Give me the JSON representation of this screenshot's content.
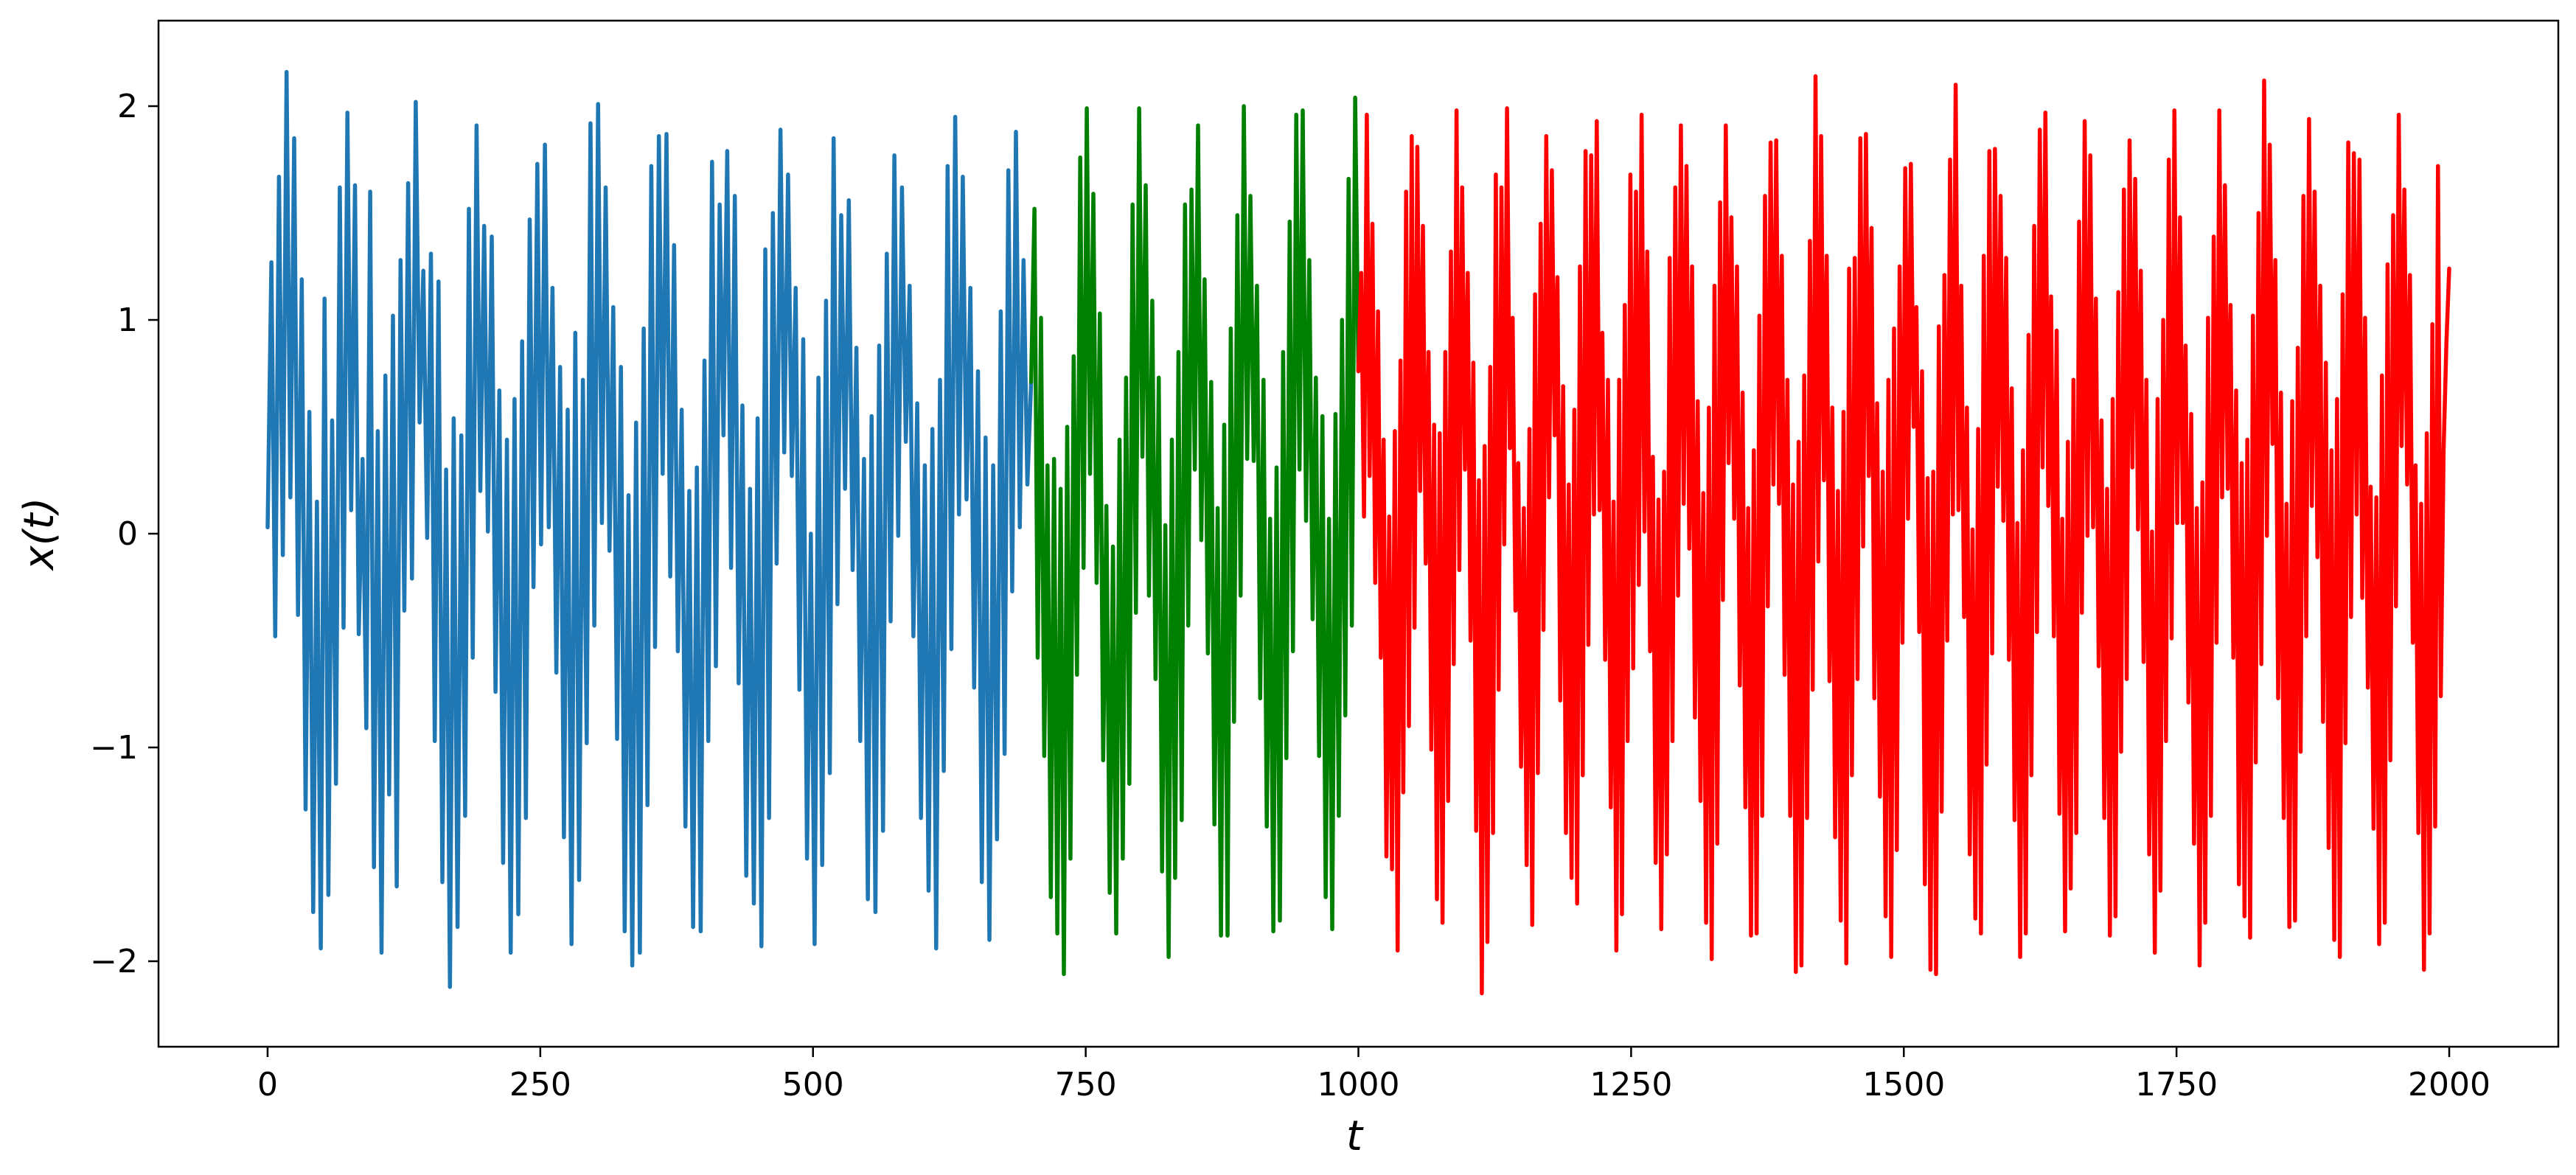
{
  "chart_data": {
    "type": "line",
    "xlabel": "t",
    "ylabel": "x(t)",
    "xlim": [
      -100,
      2100
    ],
    "ylim": [
      -2.4,
      2.4
    ],
    "grid": false,
    "x_ticks": [
      0,
      250,
      500,
      750,
      1000,
      1250,
      1500,
      1750,
      2000
    ],
    "x_tick_labels": [
      "0",
      "250",
      "500",
      "750",
      "1000",
      "1250",
      "1500",
      "1750",
      "2000"
    ],
    "y_ticks": [
      2,
      1,
      0,
      -1,
      -2
    ],
    "y_tick_labels": [
      "2",
      "1",
      "0",
      "−1",
      "−2"
    ],
    "series": [
      {
        "color": "#1f77b4",
        "x_range": [
          0,
          700
        ],
        "values": [
          0.03,
          1.27,
          -0.48,
          1.67,
          -0.1,
          2.16,
          0.17,
          1.85,
          -0.38,
          1.19,
          -1.29,
          0.57,
          -1.77,
          0.15,
          -1.94,
          1.1,
          -1.69,
          0.53,
          -1.17,
          1.62,
          -0.44,
          1.97,
          0.11,
          1.63,
          -0.47,
          0.35,
          -0.91,
          1.6,
          -1.56,
          0.48,
          -1.96,
          0.74,
          -1.22,
          1.02,
          -1.65,
          1.28,
          -0.36,
          1.64,
          -0.21,
          2.02,
          0.52,
          1.23,
          -0.02,
          1.31,
          -0.97,
          1.18,
          -1.63,
          0.3,
          -2.12,
          0.54,
          -1.84,
          0.46,
          -1.32,
          1.52,
          -0.58,
          1.91,
          0.2,
          1.44,
          0.01,
          1.39,
          -0.74,
          0.67,
          -1.54,
          0.44,
          -1.96,
          0.63,
          -1.78,
          0.9,
          -1.33,
          1.47,
          -0.25,
          1.73,
          -0.05,
          1.82,
          0.03,
          1.15,
          -0.65,
          0.78,
          -1.42,
          0.58,
          -1.92,
          0.94,
          -1.62,
          0.72,
          -0.98,
          1.92,
          -0.43,
          2.01,
          0.05,
          1.62,
          -0.08,
          1.06,
          -0.96,
          0.78,
          -1.86,
          0.18,
          -2.02,
          0.52,
          -1.96,
          0.96,
          -1.27,
          1.72,
          -0.53,
          1.86,
          0.28,
          1.87,
          -0.2,
          1.35,
          -0.55,
          0.58,
          -1.37,
          0.2,
          -1.84,
          0.31,
          -1.86,
          0.81,
          -0.97,
          1.74,
          -0.62,
          1.54,
          0.46,
          1.79,
          -0.16,
          1.58,
          -0.7,
          0.6,
          -1.6,
          0.21,
          -1.73,
          0.54,
          -1.93,
          1.33,
          -1.33,
          1.5,
          -0.14,
          1.89,
          0.38,
          1.68,
          0.27,
          1.15,
          -0.73,
          0.91,
          -1.52,
          0.0,
          -1.92,
          0.73,
          -1.55,
          1.09,
          -1.12,
          1.85,
          -0.33,
          1.49,
          0.21,
          1.56,
          -0.17,
          0.87,
          -0.97,
          0.35,
          -1.71,
          0.55,
          -1.77,
          0.88,
          -1.39,
          1.31,
          -0.41,
          1.77,
          -0.01,
          1.62,
          0.43,
          1.16,
          -0.48,
          0.61,
          -1.33,
          0.32,
          -1.67,
          0.49,
          -1.94,
          0.72,
          -1.11,
          1.72,
          -0.54,
          1.95,
          0.09,
          1.67,
          0.16,
          1.15,
          -0.72,
          0.76,
          -1.63,
          0.45,
          -1.9,
          0.32,
          -1.43,
          1.04,
          -1.03,
          1.7,
          -0.27,
          1.88,
          0.03,
          1.28,
          0.23,
          0.71
        ]
      },
      {
        "color": "#008000",
        "x_range": [
          700,
          1000
        ],
        "values": [
          0.71,
          1.52,
          -0.58,
          1.01,
          -1.04,
          0.32,
          -1.7,
          0.35,
          -1.87,
          0.21,
          -2.06,
          0.5,
          -1.52,
          0.83,
          -0.66,
          1.76,
          -0.16,
          1.99,
          0.28,
          1.59,
          -0.23,
          1.03,
          -1.06,
          0.13,
          -1.68,
          -0.06,
          -1.87,
          0.44,
          -1.52,
          0.73,
          -1.17,
          1.54,
          -0.37,
          1.99,
          0.36,
          1.63,
          -0.29,
          1.09,
          -0.68,
          0.73,
          -1.58,
          0.04,
          -1.98,
          0.44,
          -1.61,
          0.85,
          -1.34,
          1.54,
          -0.43,
          1.61,
          0.3,
          1.91,
          -0.03,
          1.19,
          -0.56,
          0.71,
          -1.36,
          0.12,
          -1.88,
          0.51,
          -1.88,
          0.96,
          -0.88,
          1.49,
          -0.29,
          2.0,
          0.35,
          1.58,
          0.34,
          1.16,
          -0.77,
          0.72,
          -1.37,
          0.07,
          -1.86,
          0.31,
          -1.81,
          0.85,
          -1.05,
          1.46,
          -0.55,
          1.96,
          0.3,
          1.98,
          0.06,
          1.28,
          -0.4,
          0.73,
          -1.04,
          0.55,
          -1.7,
          0.07,
          -1.85,
          0.56,
          -1.32,
          1.0,
          -0.85,
          1.66,
          -0.43,
          2.04,
          0.76
        ]
      },
      {
        "color": "#ff0000",
        "x_range": [
          1000,
          2000
        ],
        "values": [
          0.76,
          1.22,
          0.08,
          1.96,
          0.27,
          1.45,
          -0.23,
          1.04,
          -0.58,
          0.44,
          -1.51,
          0.08,
          -1.57,
          0.48,
          -1.95,
          0.81,
          -1.21,
          1.6,
          -0.9,
          1.86,
          -0.44,
          1.81,
          0.2,
          1.44,
          -0.14,
          0.85,
          -1.01,
          0.51,
          -1.71,
          0.47,
          -1.82,
          0.85,
          -1.25,
          1.32,
          -0.61,
          1.98,
          -0.17,
          1.62,
          0.3,
          1.22,
          -0.5,
          0.8,
          -1.39,
          0.25,
          -2.15,
          0.41,
          -1.91,
          0.78,
          -1.4,
          1.68,
          -0.73,
          1.62,
          -0.05,
          1.99,
          0.4,
          1.01,
          -0.36,
          0.33,
          -1.09,
          0.12,
          -1.55,
          0.49,
          -1.83,
          1.12,
          -1.12,
          1.45,
          -0.45,
          1.86,
          0.17,
          1.7,
          0.46,
          1.2,
          -0.78,
          0.69,
          -1.4,
          0.23,
          -1.61,
          0.58,
          -1.73,
          1.25,
          -1.13,
          1.79,
          -0.52,
          1.77,
          0.09,
          1.93,
          0.11,
          0.94,
          -0.59,
          0.72,
          -1.28,
          0.15,
          -1.95,
          0.72,
          -1.78,
          1.07,
          -0.97,
          1.68,
          -0.63,
          1.6,
          -0.24,
          1.96,
          0.01,
          1.32,
          -0.55,
          0.36,
          -1.54,
          0.16,
          -1.85,
          0.29,
          -1.5,
          1.29,
          -0.97,
          1.62,
          -0.29,
          1.91,
          0.14,
          1.72,
          -0.07,
          1.25,
          -0.86,
          0.62,
          -1.25,
          0.19,
          -1.82,
          0.59,
          -1.99,
          1.16,
          -1.45,
          1.55,
          -0.31,
          1.91,
          0.33,
          1.48,
          0.07,
          1.25,
          -0.71,
          0.66,
          -1.28,
          0.12,
          -1.88,
          0.39,
          -1.87,
          1.02,
          -1.32,
          1.58,
          -0.34,
          1.83,
          0.23,
          1.84,
          0.14,
          1.3,
          -0.66,
          0.72,
          -1.32,
          0.23,
          -2.05,
          0.43,
          -2.02,
          0.74,
          -1.33,
          1.37,
          -0.73,
          2.14,
          -0.13,
          1.86,
          0.25,
          1.3,
          -0.69,
          0.59,
          -1.42,
          0.2,
          -1.81,
          0.57,
          -2.01,
          1.24,
          -1.13,
          1.29,
          -0.68,
          1.85,
          -0.06,
          1.87,
          0.27,
          1.43,
          -0.77,
          0.61,
          -1.23,
          0.29,
          -1.79,
          0.72,
          -1.98,
          0.96,
          -1.48,
          1.25,
          -0.51,
          1.71,
          0.07,
          1.73,
          0.5,
          1.06,
          -0.46,
          0.76,
          -1.64,
          0.26,
          -2.04,
          0.29,
          -2.06,
          0.97,
          -1.3,
          1.21,
          -0.5,
          1.75,
          0.09,
          2.1,
          0.11,
          1.16,
          -0.39,
          0.59,
          -1.5,
          0.02,
          -1.8,
          0.49,
          -1.87,
          1.3,
          -1.08,
          1.79,
          -0.56,
          1.8,
          0.22,
          1.58,
          0.06,
          1.29,
          -0.59,
          0.68,
          -1.34,
          0.05,
          -1.98,
          0.39,
          -1.87,
          0.93,
          -1.13,
          1.44,
          -0.46,
          1.89,
          0.31,
          1.97,
          0.13,
          1.11,
          -0.48,
          0.95,
          -1.31,
          0.07,
          -1.86,
          0.43,
          -1.66,
          0.72,
          -1.4,
          1.46,
          -0.37,
          1.93,
          -0.01,
          1.77,
          0.03,
          1.1,
          -0.62,
          0.53,
          -1.33,
          0.21,
          -1.88,
          0.63,
          -1.79,
          1.13,
          -1.02,
          1.61,
          -0.68,
          1.84,
          0.31,
          1.66,
          0.02,
          1.23,
          -0.6,
          0.72,
          -1.5,
          0.01,
          -1.96,
          0.63,
          -1.67,
          1.0,
          -0.97,
          1.75,
          -0.49,
          1.98,
          0.05,
          1.48,
          0.05,
          0.88,
          -0.79,
          0.56,
          -1.45,
          0.12,
          -2.02,
          0.24,
          -1.82,
          1.01,
          -1.32,
          1.39,
          -0.51,
          1.98,
          0.17,
          1.63,
          0.21,
          1.07,
          -0.58,
          0.67,
          -1.64,
          0.33,
          -1.79,
          0.44,
          -1.89,
          1.02,
          -1.07,
          1.5,
          -0.61,
          2.12,
          -0.01,
          1.82,
          0.42,
          1.28,
          -0.77,
          0.66,
          -1.33,
          0.14,
          -1.84,
          0.62,
          -1.81,
          0.87,
          -1.02,
          1.58,
          -0.48,
          1.94,
          0.13,
          1.6,
          -0.11,
          1.16,
          -0.88,
          0.8,
          -1.47,
          0.39,
          -1.9,
          0.63,
          -1.98,
          1.12,
          -0.98,
          1.83,
          -0.39,
          1.78,
          0.09,
          1.75,
          -0.3,
          1.01,
          -0.72,
          0.22,
          -1.38,
          0.17,
          -1.92,
          0.74,
          -1.82,
          1.26,
          -1.06,
          1.49,
          -0.34,
          1.96,
          0.41,
          1.61,
          0.23,
          1.21,
          -0.51,
          0.32,
          -1.4,
          0.14,
          -2.04,
          0.47,
          -1.87,
          0.98,
          -1.37,
          1.72,
          -0.76,
          0.39,
          0.89,
          1.24
        ]
      }
    ]
  }
}
